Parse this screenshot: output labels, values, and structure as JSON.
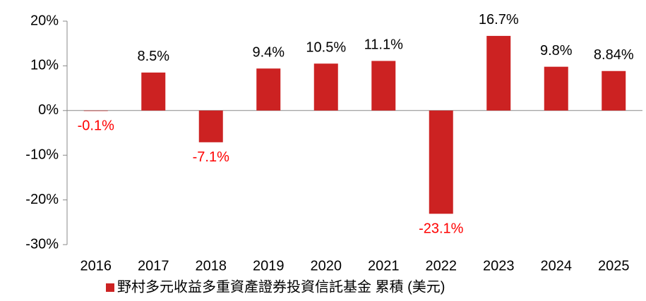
{
  "chart_data": {
    "type": "bar",
    "categories": [
      "2016",
      "2017",
      "2018",
      "2019",
      "2020",
      "2021",
      "2022",
      "2023",
      "2024",
      "2025"
    ],
    "series": [
      {
        "name": "野村多元收益多重資產證券投資信託基金 累積 (美元)",
        "color": "#cc2222",
        "values": [
          -0.1,
          8.5,
          -7.1,
          9.4,
          10.5,
          11.1,
          -23.1,
          16.7,
          9.8,
          8.84
        ],
        "value_labels": [
          "-0.1%",
          "8.5%",
          "-7.1%",
          "9.4%",
          "10.5%",
          "11.1%",
          "-23.1%",
          "16.7%",
          "9.8%",
          "8.84%"
        ]
      }
    ],
    "ylim": [
      -30,
      20
    ],
    "yticks": [
      {
        "value": -30,
        "label": "-30%"
      },
      {
        "value": -20,
        "label": "-20%"
      },
      {
        "value": -10,
        "label": "-10%"
      },
      {
        "value": 0,
        "label": "0%"
      },
      {
        "value": 10,
        "label": "10%"
      },
      {
        "value": 20,
        "label": "20%"
      }
    ],
    "legend": "bottom"
  }
}
